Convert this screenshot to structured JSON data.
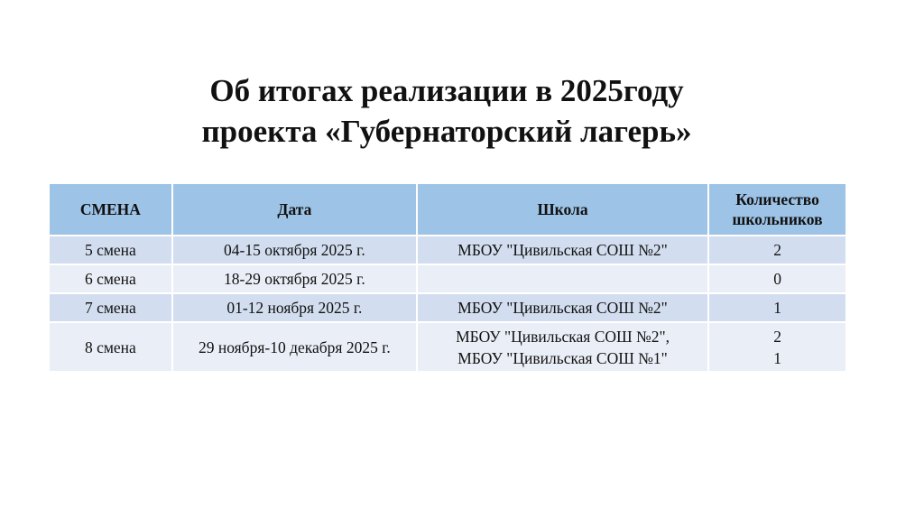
{
  "title": {
    "line1": "Об итогах реализации в 2025году",
    "line2": "проекта «Губернаторский лагерь»"
  },
  "table": {
    "headers": [
      "СМЕНА",
      "Дата",
      "Школа",
      "Количество школьников"
    ],
    "rows": [
      {
        "shift": "5 смена",
        "date": "04-15 октября 2025 г.",
        "school": [
          "МБОУ \"Цивильская СОШ №2\""
        ],
        "count": [
          "2"
        ]
      },
      {
        "shift": "6 смена",
        "date": "18-29 октября 2025 г.",
        "school": [
          ""
        ],
        "count": [
          "0"
        ]
      },
      {
        "shift": "7 смена",
        "date": "01-12 ноября 2025 г.",
        "school": [
          "МБОУ \"Цивильская СОШ №2\""
        ],
        "count": [
          "1"
        ]
      },
      {
        "shift": "8 смена",
        "date": "29 ноября-10 декабря 2025 г.",
        "school": [
          "МБОУ \"Цивильская СОШ №2\",",
          "МБОУ \"Цивильская СОШ №1\""
        ],
        "count": [
          "2",
          "1"
        ]
      }
    ]
  },
  "colors": {
    "header": "#9dc3e6",
    "row_odd": "#d2deef",
    "row_even": "#eaeff7"
  }
}
